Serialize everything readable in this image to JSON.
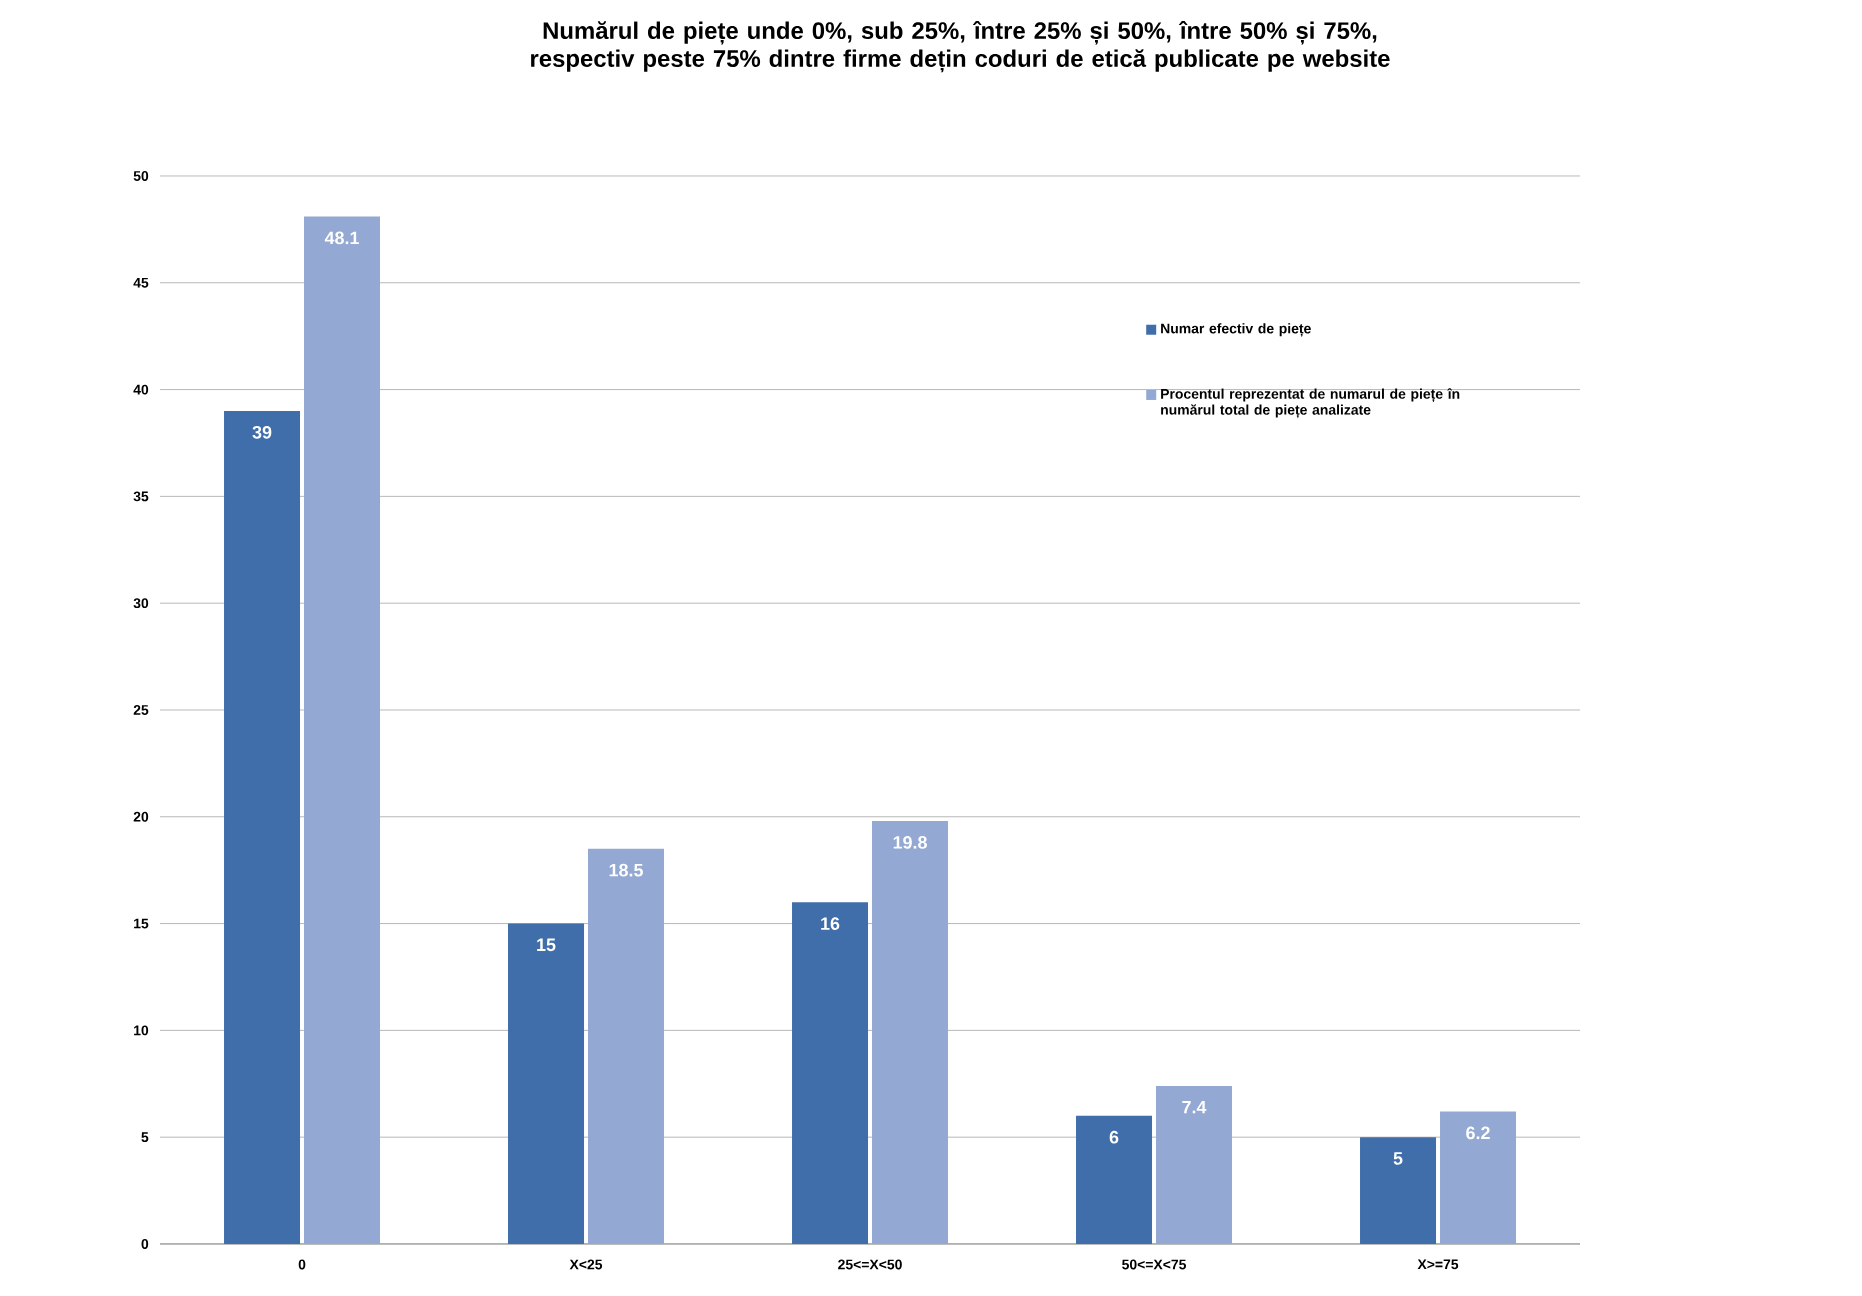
{
  "chart_data": {
    "type": "bar",
    "title": "Numărul de piețe unde 0%, sub 25%, între 25% și 50%, între 50% și 75%, respectiv peste 75% dintre firme dețin coduri de etică publicate pe website",
    "categories": [
      "0",
      "X<25",
      "25<=X<50",
      "50<=X<75",
      "X>=75"
    ],
    "series": [
      {
        "name": "Numar efectiv de piețe",
        "color": "#3f6eaa",
        "values": [
          39,
          15,
          16,
          6,
          5
        ]
      },
      {
        "name": "Procentul reprezentat de numarul de piețe în numărul total de piețe analizate",
        "color": "#93a9d3",
        "values": [
          48.1,
          18.5,
          19.8,
          7.4,
          6.2
        ]
      }
    ],
    "ylim": [
      0,
      50
    ],
    "yticks": [
      0,
      5,
      10,
      15,
      20,
      25,
      30,
      35,
      40,
      45,
      50
    ],
    "grid": "y",
    "legend": "right",
    "data_labels": true
  }
}
